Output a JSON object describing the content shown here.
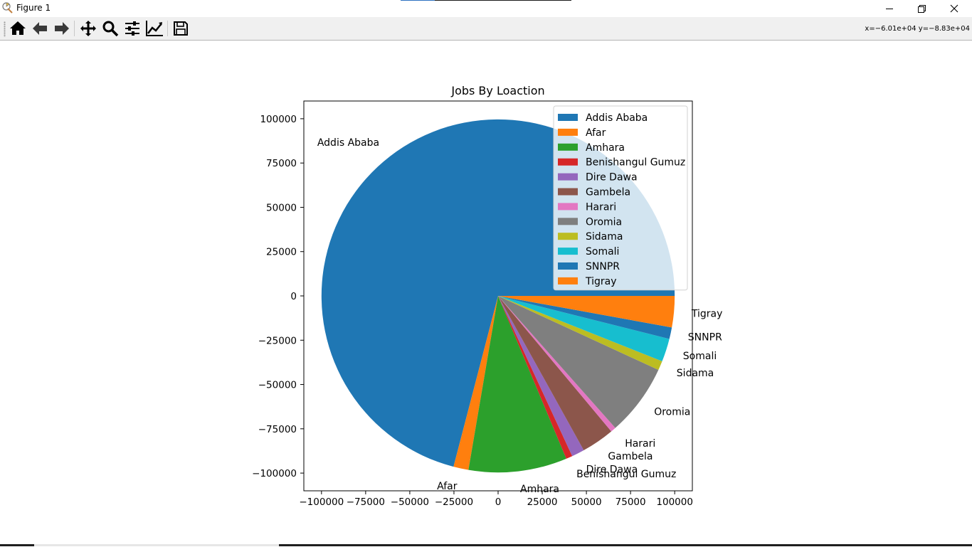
{
  "window": {
    "title": "Figure 1",
    "controls": [
      "minimize",
      "maximize",
      "close"
    ]
  },
  "toolbar": {
    "tools": [
      {
        "name": "home-icon"
      },
      {
        "name": "back-icon"
      },
      {
        "name": "forward-icon"
      },
      {
        "name": "pan-icon"
      },
      {
        "name": "zoom-icon"
      },
      {
        "name": "configure-subplots-icon"
      },
      {
        "name": "edit-axis-icon"
      },
      {
        "name": "save-icon"
      }
    ],
    "coords": "x=−6.01e+04 y=−8.83e+04"
  },
  "chart_data": {
    "type": "pie",
    "title": "Jobs By Loaction",
    "categories": [
      "Addis Ababa",
      "Afar",
      "Amhara",
      "Benishangul Gumuz",
      "Dire Dawa",
      "Gambela",
      "Harari",
      "Oromia",
      "Sidama",
      "Somali",
      "SNNPR",
      "Tigray"
    ],
    "values": [
      1340,
      26,
      170,
      11,
      22,
      57,
      9,
      124,
      16,
      40,
      20,
      54
    ],
    "colors": [
      "#1f77b4",
      "#ff7f0e",
      "#2ca02c",
      "#d62728",
      "#9467bd",
      "#8c564b",
      "#e377c2",
      "#7f7f7f",
      "#bcbd22",
      "#17becf",
      "#1f77b4",
      "#ff7f0e"
    ],
    "start_angle_deg": 0,
    "direction": "counterclockwise",
    "radius": 100000,
    "xlim": [
      -110000,
      110000
    ],
    "ylim": [
      -110000,
      110000
    ],
    "xticks": [
      -100000,
      -75000,
      -50000,
      -25000,
      0,
      25000,
      50000,
      75000,
      100000
    ],
    "yticks": [
      -100000,
      -75000,
      -50000,
      -25000,
      0,
      25000,
      50000,
      75000,
      100000
    ],
    "xtick_labels": [
      "−100000",
      "−75000",
      "−50000",
      "−25000",
      "0",
      "25000",
      "50000",
      "75000",
      "100000"
    ],
    "ytick_labels": [
      "−100000",
      "−75000",
      "−50000",
      "−25000",
      "0",
      "25000",
      "50000",
      "75000",
      "100000"
    ],
    "legend": "upper right",
    "grid": false
  }
}
